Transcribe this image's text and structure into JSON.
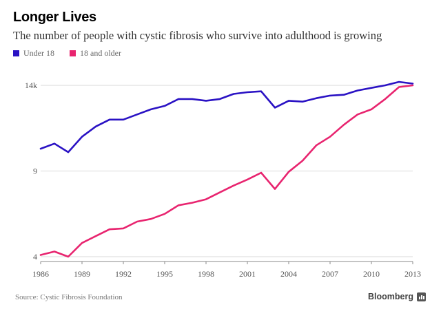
{
  "header": {
    "title": "Longer Lives",
    "subtitle": "The number of people with cystic fibrosis who survive into adulthood is growing"
  },
  "legend": [
    {
      "label": "Under 18",
      "color": "#2a12c4"
    },
    {
      "label": "18 and older",
      "color": "#e8246f"
    }
  ],
  "footer": {
    "source": "Source: Cystic Fibrosis Foundation",
    "brand": "Bloomberg",
    "brand_icon": "bloomberg-logo-icon"
  },
  "chart_data": {
    "type": "line",
    "x": [
      1986,
      1987,
      1988,
      1989,
      1990,
      1991,
      1992,
      1993,
      1994,
      1995,
      1996,
      1997,
      1998,
      1999,
      2000,
      2001,
      2002,
      2003,
      2004,
      2005,
      2006,
      2007,
      2008,
      2009,
      2010,
      2011,
      2012,
      2013
    ],
    "series": [
      {
        "name": "Under 18",
        "color": "#2a12c4",
        "values": [
          10.3,
          10.6,
          10.1,
          11.0,
          11.6,
          12.0,
          12.0,
          12.3,
          12.6,
          12.8,
          13.2,
          13.2,
          13.1,
          13.2,
          13.5,
          13.6,
          13.65,
          12.7,
          13.1,
          13.05,
          13.25,
          13.4,
          13.45,
          13.7,
          13.85,
          14.0,
          14.2,
          14.1
        ]
      },
      {
        "name": "18 and older",
        "color": "#e8246f",
        "values": [
          4.1,
          4.3,
          4.0,
          4.8,
          5.2,
          5.6,
          5.65,
          6.05,
          6.2,
          6.5,
          7.0,
          7.15,
          7.35,
          7.75,
          8.15,
          8.5,
          8.9,
          7.95,
          8.95,
          9.6,
          10.5,
          11.0,
          11.7,
          12.3,
          12.6,
          13.2,
          13.9,
          14.0
        ]
      }
    ],
    "y_ticks": [
      {
        "value": 4,
        "label": "4"
      },
      {
        "value": 9,
        "label": "9"
      },
      {
        "value": 14,
        "label": "14k"
      }
    ],
    "x_ticks": [
      "1986",
      "1989",
      "1992",
      "1995",
      "1998",
      "2001",
      "2004",
      "2007",
      "2010",
      "2013"
    ],
    "xlim": [
      1986,
      2013
    ],
    "ylim": [
      4,
      14
    ],
    "grid": true,
    "legend_position": "top-left"
  }
}
